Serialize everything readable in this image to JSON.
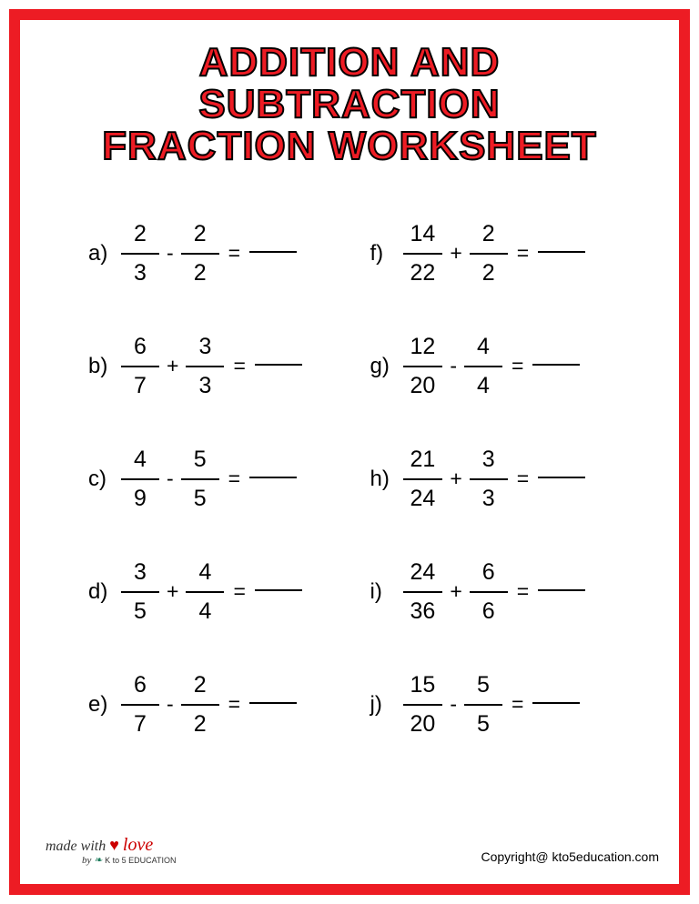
{
  "title_line1": "ADDITION AND SUBTRACTION",
  "title_line2": "FRACTION WORKSHEET",
  "border_color": "#ed1c24",
  "title_color": "#ed1c24",
  "title_stroke": "#000000",
  "problems": [
    {
      "label": "a)",
      "n1": "2",
      "d1": "3",
      "op": "-",
      "n2": "2",
      "d2": "2"
    },
    {
      "label": "f)",
      "n1": "14",
      "d1": "22",
      "op": "+",
      "n2": "2",
      "d2": "2"
    },
    {
      "label": "b)",
      "n1": "6",
      "d1": "7",
      "op": "+",
      "n2": "3",
      "d2": "3"
    },
    {
      "label": "g)",
      "n1": "12",
      "d1": "20",
      "op": "-",
      "n2": "4",
      "d2": "4"
    },
    {
      "label": "c)",
      "n1": "4",
      "d1": "9",
      "op": "-",
      "n2": "5",
      "d2": "5"
    },
    {
      "label": "h)",
      "n1": "21",
      "d1": "24",
      "op": "+",
      "n2": "3",
      "d2": "3"
    },
    {
      "label": "d)",
      "n1": "3",
      "d1": "5",
      "op": "+",
      "n2": "4",
      "d2": "4"
    },
    {
      "label": "i)",
      "n1": "24",
      "d1": "36",
      "op": "+",
      "n2": "6",
      "d2": "6"
    },
    {
      "label": "e)",
      "n1": "6",
      "d1": "7",
      "op": "-",
      "n2": "2",
      "d2": "2"
    },
    {
      "label": "j)",
      "n1": "15",
      "d1": "20",
      "op": "-",
      "n2": "5",
      "d2": "5"
    }
  ],
  "equals": "=",
  "footer_left_made": "made with",
  "footer_left_love": "love",
  "footer_left_by": "by",
  "footer_left_brand": "K to 5 EDUCATION",
  "footer_right": "Copyright@ kto5education.com"
}
